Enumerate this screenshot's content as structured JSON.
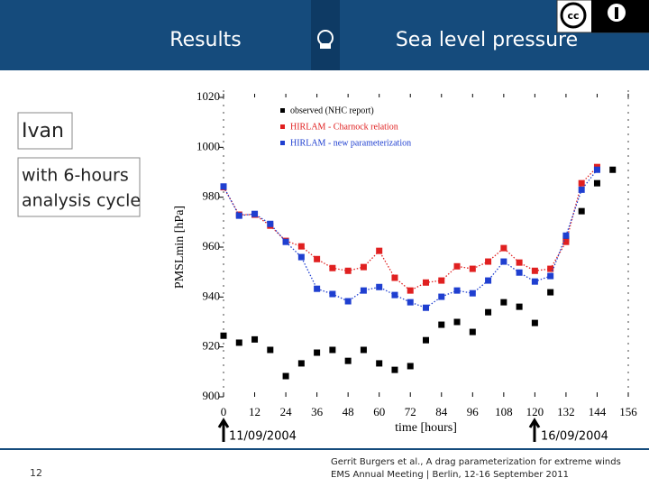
{
  "header": {
    "left": "Results",
    "right": "Sea level pressure"
  },
  "sidebar": {
    "storm": "Ivan",
    "note_line1": "with 6-hours",
    "note_line2": "analysis cycle"
  },
  "markers": {
    "start": "11/09/2004",
    "end": "16/09/2004"
  },
  "footer": {
    "page": "12",
    "credit_line1": "Gerrit Burgers et al., A drag parameterization for extreme winds",
    "credit_line2": "EMS Annual Meeting | Berlin, 12-16 September 2011"
  },
  "chart_data": {
    "type": "line",
    "xlabel": "time [hours]",
    "ylabel": "PMSLmin [hPa]",
    "x": [
      0,
      6,
      12,
      18,
      24,
      30,
      36,
      42,
      48,
      54,
      60,
      66,
      72,
      78,
      84,
      90,
      96,
      102,
      108,
      114,
      120,
      126,
      132,
      138,
      144,
      150
    ],
    "series": [
      {
        "name": "observed (NHC report)",
        "color": "#000000",
        "line": false,
        "values": [
          924.5,
          921.7,
          923,
          918.8,
          908.3,
          913.4,
          917.7,
          918.8,
          914.4,
          918.8,
          913.4,
          910.8,
          912.3,
          922.7,
          928.9,
          930,
          926,
          933.9,
          937.9,
          936.1,
          929.6,
          941.9,
          963.2,
          974.4,
          985.6,
          991
        ]
      },
      {
        "name": "HIRLAM - Charnock relation",
        "color": "#e02020",
        "line": true,
        "values": [
          984,
          973,
          973,
          968.6,
          962.5,
          960.3,
          955.2,
          951.6,
          950.5,
          952,
          958.5,
          947.7,
          942.6,
          945.8,
          946.6,
          952.3,
          951.3,
          954.2,
          959.6,
          953.8,
          950.5,
          951.3,
          962.1,
          985.6,
          992.1,
          null
        ]
      },
      {
        "name": "HIRLAM - new parameterization",
        "color": "#1f3fd0",
        "line": true,
        "values": [
          984.3,
          972.6,
          973.3,
          969.3,
          962.1,
          956,
          943.3,
          941.2,
          938.3,
          942.6,
          944,
          940.8,
          937.9,
          935.7,
          940.1,
          942.6,
          941.5,
          946.6,
          954.2,
          949.8,
          946.2,
          948.4,
          964.6,
          983,
          991,
          null
        ]
      }
    ],
    "xlim": [
      0,
      156
    ],
    "xticks": [
      0,
      12,
      24,
      36,
      48,
      60,
      72,
      84,
      96,
      108,
      120,
      132,
      144,
      156
    ],
    "ylim": [
      900,
      1020
    ],
    "yticks": [
      900,
      920,
      940,
      960,
      980,
      1000,
      1020
    ]
  }
}
